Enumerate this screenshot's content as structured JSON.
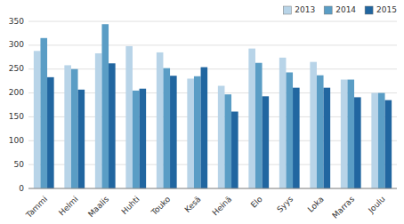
{
  "chart_data": {
    "type": "bar",
    "categories": [
      "Tammi",
      "Helmi",
      "Maalis",
      "Huhti",
      "Touko",
      "Kesä",
      "Heinä",
      "Elo",
      "Syys",
      "Loka",
      "Marras",
      "Joulu"
    ],
    "series": [
      {
        "name": "2013",
        "color": "#b8d4e8",
        "values": [
          288,
          258,
          283,
          298,
          285,
          230,
          215,
          293,
          274,
          265,
          228,
          200
        ]
      },
      {
        "name": "2014",
        "color": "#5a9dc5",
        "values": [
          315,
          250,
          344,
          205,
          252,
          235,
          197,
          263,
          243,
          237,
          228,
          200
        ]
      },
      {
        "name": "2015",
        "color": "#2166a0",
        "values": [
          233,
          207,
          262,
          209,
          236,
          254,
          161,
          193,
          211,
          211,
          191,
          185
        ]
      }
    ],
    "ylim": [
      0,
      350
    ],
    "yticks": [
      0,
      50,
      100,
      150,
      200,
      250,
      300,
      350
    ],
    "grid": true,
    "legend": "upper right"
  }
}
